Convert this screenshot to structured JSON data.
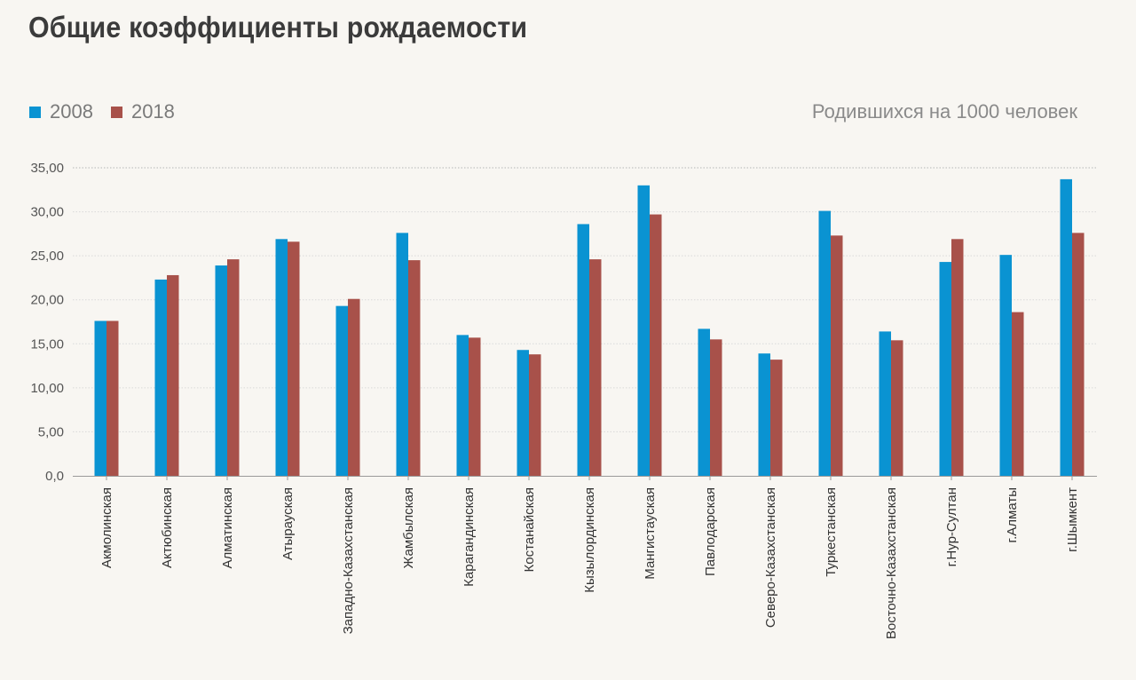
{
  "title": "Общие коэффициенты рождаемости",
  "unit_label": "Родившихся на 1000 человек",
  "legend": [
    {
      "label": "2008",
      "color": "#0a93d2"
    },
    {
      "label": "2018",
      "color": "#a8514a"
    }
  ],
  "chart_data": {
    "type": "bar",
    "title": "Общие коэффициенты рождаемости",
    "ylabel": "Родившихся на 1000 человек",
    "xlabel": "",
    "ylim": [
      0,
      35
    ],
    "yticks": [
      "0,0",
      "5,00",
      "10,00",
      "15,00",
      "20,00",
      "25,00",
      "30,00",
      "35,00"
    ],
    "grid": true,
    "legend_position": "top-left",
    "categories": [
      "Акмолинская",
      "Актюбинская",
      "Алматинская",
      "Атырауская",
      "Западно-Казахстанская",
      "Жамбылская",
      "Карагандинская",
      "Костанайская",
      "Кызылординская",
      "Мангистауская",
      "Павлодарская",
      "Северо-Казахстанская",
      "Туркестанская",
      "Восточно-Казахстанская",
      "г.Нур-Султан",
      "г.Алматы",
      "г.Шымкент"
    ],
    "series": [
      {
        "name": "2008",
        "color": "#0a93d2",
        "values": [
          17.6,
          22.3,
          23.9,
          26.9,
          19.3,
          27.6,
          16.0,
          14.3,
          28.6,
          33.0,
          16.7,
          13.9,
          30.1,
          16.4,
          24.3,
          25.1,
          33.7
        ]
      },
      {
        "name": "2018",
        "color": "#a8514a",
        "values": [
          17.6,
          22.8,
          24.6,
          26.6,
          20.1,
          24.5,
          15.7,
          13.8,
          24.6,
          29.7,
          15.5,
          13.2,
          27.3,
          15.4,
          26.9,
          18.6,
          27.6
        ]
      }
    ]
  }
}
